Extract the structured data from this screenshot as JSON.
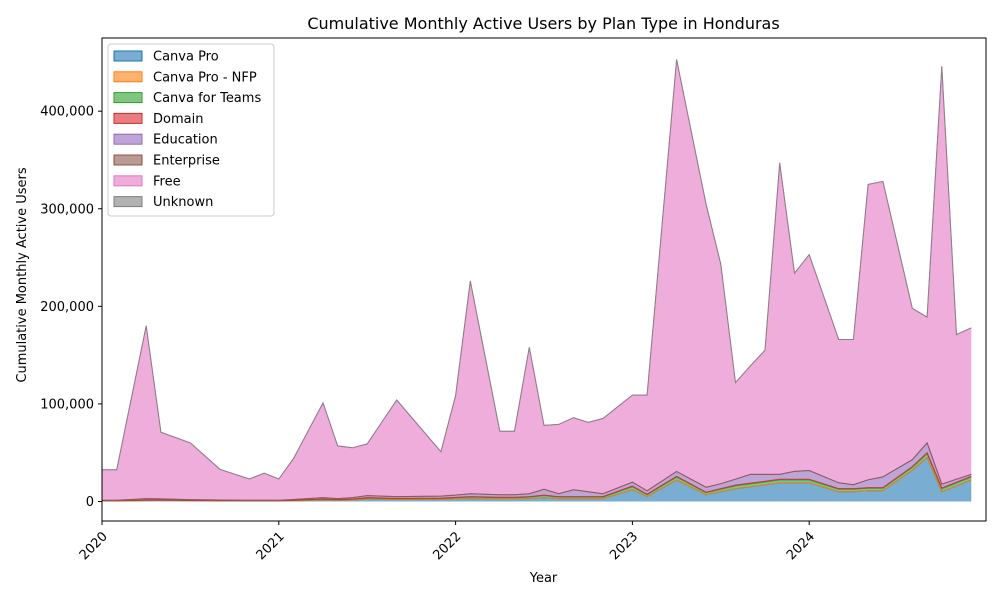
{
  "chart_data": {
    "type": "area",
    "stacked": true,
    "title": "Cumulative Monthly Active Users by Plan Type in Honduras",
    "xlabel": "Year",
    "ylabel": "Cumulative Monthly Active Users",
    "xlim": [
      2020.0,
      2025.0
    ],
    "ylim": [
      -20000,
      475000
    ],
    "x_ticks": [
      2020,
      2021,
      2022,
      2023,
      2024
    ],
    "x_tick_labels": [
      "2020",
      "2021",
      "2022",
      "2023",
      "2024"
    ],
    "y_ticks": [
      0,
      100000,
      200000,
      300000,
      400000
    ],
    "y_tick_labels": [
      "0",
      "100,000",
      "200,000",
      "300,000",
      "400,000"
    ],
    "legend_position": "upper-left",
    "grid": false,
    "x": [
      2020.0,
      2020.083,
      2020.25,
      2020.333,
      2020.5,
      2020.667,
      2020.833,
      2020.917,
      2021.0,
      2021.083,
      2021.25,
      2021.333,
      2021.417,
      2021.5,
      2021.667,
      2021.917,
      2022.0,
      2022.083,
      2022.25,
      2022.333,
      2022.417,
      2022.5,
      2022.583,
      2022.667,
      2022.75,
      2022.833,
      2023.0,
      2023.083,
      2023.25,
      2023.417,
      2023.5,
      2023.583,
      2023.667,
      2023.75,
      2023.833,
      2023.917,
      2024.0,
      2024.167,
      2024.25,
      2024.333,
      2024.417,
      2024.583,
      2024.667,
      2024.75,
      2024.833,
      2024.917
    ],
    "series": [
      {
        "name": "Canva Pro",
        "color": "#1f77b4",
        "values": [
          500,
          500,
          1000,
          1200,
          800,
          700,
          600,
          600,
          600,
          800,
          1500,
          1200,
          1500,
          2500,
          2000,
          2200,
          2500,
          3000,
          2500,
          2500,
          3000,
          4000,
          3000,
          3000,
          3000,
          3000,
          12000,
          5000,
          22000,
          7000,
          10000,
          13000,
          15000,
          17000,
          19000,
          19000,
          19000,
          10000,
          10000,
          11000,
          11000,
          32000,
          45000,
          10000,
          16000,
          22000
        ]
      },
      {
        "name": "Canva Pro - NFP",
        "color": "#ff7f0e",
        "values": [
          0,
          0,
          0,
          0,
          0,
          0,
          0,
          0,
          0,
          0,
          0,
          0,
          0,
          0,
          0,
          0,
          0,
          0,
          0,
          0,
          0,
          0,
          0,
          0,
          0,
          0,
          0,
          0,
          0,
          0,
          0,
          0,
          0,
          0,
          0,
          0,
          0,
          0,
          0,
          0,
          0,
          0,
          0,
          0,
          0,
          0
        ]
      },
      {
        "name": "Canva for Teams",
        "color": "#2ca02c",
        "values": [
          100,
          100,
          300,
          200,
          200,
          100,
          100,
          100,
          100,
          300,
          600,
          500,
          600,
          1000,
          800,
          900,
          1200,
          1500,
          1300,
          1300,
          1500,
          2000,
          1500,
          1500,
          1500,
          1500,
          3000,
          2000,
          3000,
          2000,
          2500,
          3000,
          3000,
          3000,
          3000,
          3000,
          3000,
          2500,
          2500,
          2500,
          2500,
          3000,
          4000,
          3000,
          3000,
          3000
        ]
      },
      {
        "name": "Domain",
        "color": "#d62728",
        "values": [
          100,
          100,
          200,
          200,
          100,
          100,
          100,
          100,
          100,
          200,
          400,
          300,
          400,
          500,
          400,
          400,
          500,
          500,
          500,
          500,
          500,
          500,
          500,
          500,
          500,
          500,
          800,
          500,
          800,
          500,
          700,
          800,
          800,
          800,
          800,
          800,
          800,
          700,
          700,
          700,
          700,
          800,
          1000,
          800,
          800,
          800
        ]
      },
      {
        "name": "Education",
        "color": "#9467bd",
        "values": [
          500,
          500,
          1500,
          1000,
          800,
          600,
          500,
          500,
          500,
          700,
          1500,
          1000,
          1500,
          2000,
          1800,
          2000,
          2300,
          3000,
          2700,
          2700,
          3000,
          6000,
          3000,
          7000,
          5000,
          3000,
          4000,
          3500,
          5000,
          5000,
          5000,
          6000,
          9000,
          7000,
          5000,
          8000,
          9000,
          6000,
          4000,
          8000,
          11000,
          7000,
          10000,
          4000,
          3000,
          2000
        ]
      },
      {
        "name": "Enterprise",
        "color": "#8c564b",
        "values": [
          0,
          0,
          0,
          0,
          0,
          0,
          0,
          0,
          0,
          0,
          0,
          0,
          0,
          0,
          0,
          0,
          0,
          0,
          0,
          0,
          0,
          0,
          0,
          0,
          0,
          0,
          0,
          0,
          0,
          0,
          0,
          0,
          0,
          0,
          0,
          0,
          0,
          0,
          0,
          0,
          0,
          0,
          0,
          0,
          0,
          0
        ]
      },
      {
        "name": "Free",
        "color": "#e377c2",
        "values": [
          31300,
          31300,
          177000,
          68400,
          58100,
          31500,
          21700,
          27700,
          21700,
          42000,
          97000,
          54000,
          51000,
          53000,
          99000,
          45500,
          102000,
          218000,
          65000,
          65000,
          150000,
          65500,
          71000,
          74000,
          71000,
          77000,
          89200,
          98000,
          422200,
          290000,
          225000,
          99000,
          111200,
          127200,
          319200,
          203200,
          221200,
          146800,
          148800,
          302800,
          302800,
          155200,
          129000,
          428200,
          148200,
          150200
        ]
      },
      {
        "name": "Unknown",
        "color": "#7f7f7f",
        "values": [
          0,
          0,
          0,
          0,
          0,
          0,
          0,
          0,
          0,
          0,
          0,
          0,
          0,
          0,
          0,
          0,
          0,
          0,
          0,
          0,
          0,
          0,
          0,
          0,
          0,
          0,
          0,
          0,
          0,
          0,
          0,
          0,
          0,
          0,
          0,
          0,
          0,
          0,
          0,
          0,
          0,
          0,
          0,
          0,
          0,
          0
        ]
      }
    ]
  }
}
